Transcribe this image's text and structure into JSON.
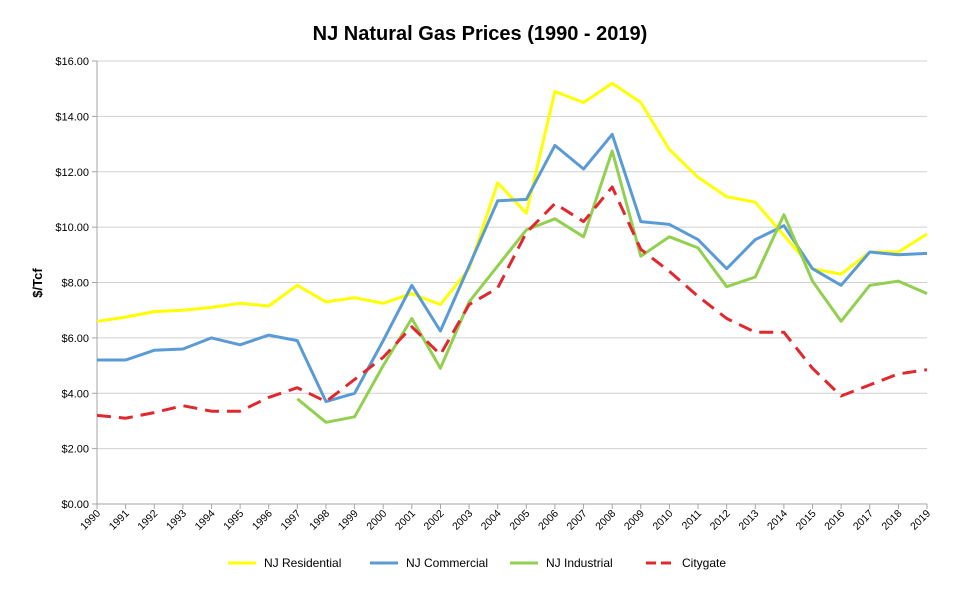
{
  "chart_data": {
    "type": "line",
    "title": "NJ Natural Gas Prices (1990 - 2019)",
    "xlabel": "",
    "ylabel": "$/Tcf",
    "ylim": [
      0,
      16
    ],
    "ytick_labels": [
      "$0.00",
      "$2.00",
      "$4.00",
      "$6.00",
      "$8.00",
      "$10.00",
      "$12.00",
      "$14.00",
      "$16.00"
    ],
    "grid": true,
    "legend": "bottom",
    "categories": [
      "1990",
      "1991",
      "1992",
      "1993",
      "1994",
      "1995",
      "1996",
      "1997",
      "1998",
      "1999",
      "2000",
      "2001",
      "2002",
      "2003",
      "2004",
      "2005",
      "2006",
      "2007",
      "2008",
      "2009",
      "2010",
      "2011",
      "2012",
      "2013",
      "2014",
      "2015",
      "2016",
      "2017",
      "2018",
      "2019"
    ],
    "series": [
      {
        "name": "NJ Residential",
        "color": "#FFFF00",
        "dashed": false,
        "values": [
          6.6,
          6.75,
          6.95,
          7.0,
          7.1,
          7.25,
          7.15,
          7.9,
          7.3,
          7.45,
          7.25,
          7.6,
          7.2,
          8.5,
          11.6,
          10.5,
          14.9,
          14.5,
          15.2,
          14.5,
          12.8,
          11.8,
          11.1,
          10.9,
          9.7,
          8.5,
          8.3,
          9.1,
          9.1,
          9.75
        ]
      },
      {
        "name": "NJ Commercial",
        "color": "#5B9BD5",
        "dashed": false,
        "values": [
          5.2,
          5.2,
          5.55,
          5.6,
          6.0,
          5.75,
          6.1,
          5.9,
          3.7,
          4.0,
          5.9,
          7.9,
          6.25,
          8.6,
          10.95,
          11.0,
          12.95,
          12.1,
          13.35,
          10.2,
          10.1,
          9.55,
          8.5,
          9.55,
          10.05,
          8.5,
          7.9,
          9.1,
          9.0,
          9.05
        ]
      },
      {
        "name": "NJ Industrial",
        "color": "#92D050",
        "dashed": false,
        "values": [
          null,
          null,
          null,
          null,
          null,
          null,
          null,
          3.8,
          2.95,
          3.15,
          5.0,
          6.7,
          4.9,
          7.3,
          8.6,
          9.9,
          10.3,
          9.65,
          12.75,
          8.95,
          9.65,
          9.25,
          7.85,
          8.2,
          10.45,
          8.05,
          6.6,
          7.9,
          8.05,
          7.6
        ]
      },
      {
        "name": "Citygate",
        "color": "#E0282E",
        "dashed": true,
        "values": [
          3.2,
          3.1,
          3.3,
          3.55,
          3.35,
          3.35,
          3.85,
          4.2,
          3.7,
          4.5,
          5.3,
          6.4,
          5.4,
          7.2,
          7.8,
          9.8,
          10.85,
          10.2,
          11.45,
          9.2,
          8.4,
          7.5,
          6.7,
          6.2,
          6.2,
          4.9,
          3.9,
          4.3,
          4.7,
          4.85
        ]
      }
    ]
  }
}
